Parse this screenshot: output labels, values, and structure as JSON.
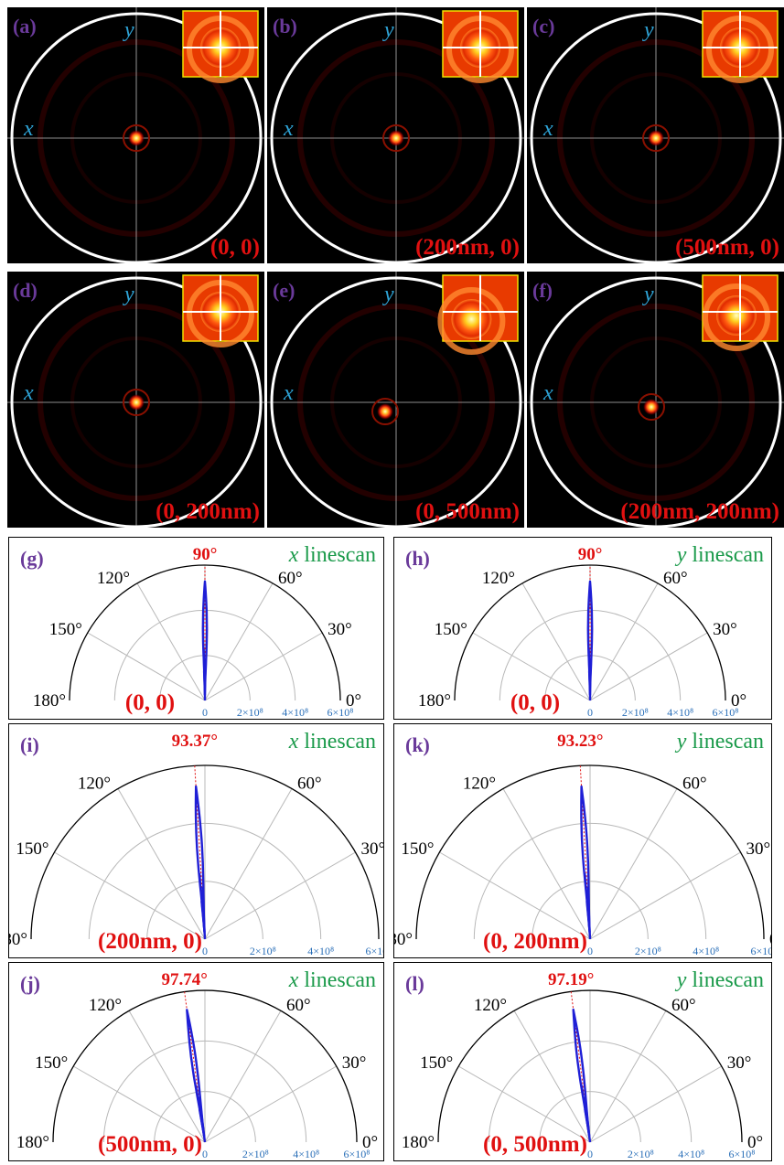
{
  "psf_panels": [
    {
      "label": "(a)",
      "x_label": "x",
      "y_label": "y",
      "coord": "(0, 0)",
      "spot_dx": 0,
      "spot_dy": 0
    },
    {
      "label": "(b)",
      "x_label": "x",
      "y_label": "y",
      "coord": "(200nm, 0)",
      "spot_dx": 0,
      "spot_dy": 0
    },
    {
      "label": "(c)",
      "x_label": "x",
      "y_label": "y",
      "coord": "(500nm, 0)",
      "spot_dx": 0,
      "spot_dy": 0
    },
    {
      "label": "(d)",
      "x_label": "x",
      "y_label": "y",
      "coord": "(0, 200nm)",
      "spot_dx": 0,
      "spot_dy": 0
    },
    {
      "label": "(e)",
      "x_label": "x",
      "y_label": "y",
      "coord": "(0, 500nm)",
      "spot_dx": -12,
      "spot_dy": 10
    },
    {
      "label": "(f)",
      "x_label": "x",
      "y_label": "y",
      "coord": "(200nm, 200nm)",
      "spot_dx": -5,
      "spot_dy": 5
    }
  ],
  "polar_angle_labels": [
    "180°",
    "150°",
    "120°",
    "60°",
    "30°",
    "0°"
  ],
  "radial_tick_labels": [
    "0",
    "2×10⁸",
    "4×10⁸",
    "6×10⁸"
  ],
  "polar_panels": [
    {
      "label": "(g)",
      "scan_axis": "x",
      "scan_word": " linescan",
      "peak_label": "90°",
      "peak_angle_deg": 90,
      "coord": "(0, 0)"
    },
    {
      "label": "(h)",
      "scan_axis": "y",
      "scan_word": " linescan",
      "peak_label": "90°",
      "peak_angle_deg": 90,
      "coord": "(0, 0)"
    },
    {
      "label": "(i)",
      "scan_axis": "x",
      "scan_word": " linescan",
      "peak_label": "93.37°",
      "peak_angle_deg": 93.37,
      "coord": "(200nm, 0)"
    },
    {
      "label": "(k)",
      "scan_axis": "y",
      "scan_word": " linescan",
      "peak_label": "93.23°",
      "peak_angle_deg": 93.23,
      "coord": "(0, 200nm)"
    },
    {
      "label": "(j)",
      "scan_axis": "x",
      "scan_word": " linescan",
      "peak_label": "97.74°",
      "peak_angle_deg": 97.74,
      "coord": "(500nm, 0)"
    },
    {
      "label": "(l)",
      "scan_axis": "y",
      "scan_word": " linescan",
      "peak_label": "97.19°",
      "peak_angle_deg": 97.19,
      "coord": "(0, 500nm)"
    }
  ],
  "colors": {
    "panel_label": "#6a3a9a",
    "axis_label": "#2ea3d6",
    "coord": "#e01010",
    "scan": "#1a9a4a",
    "lobe": "#1f1fd6",
    "tick": "#2a6fb8"
  }
}
